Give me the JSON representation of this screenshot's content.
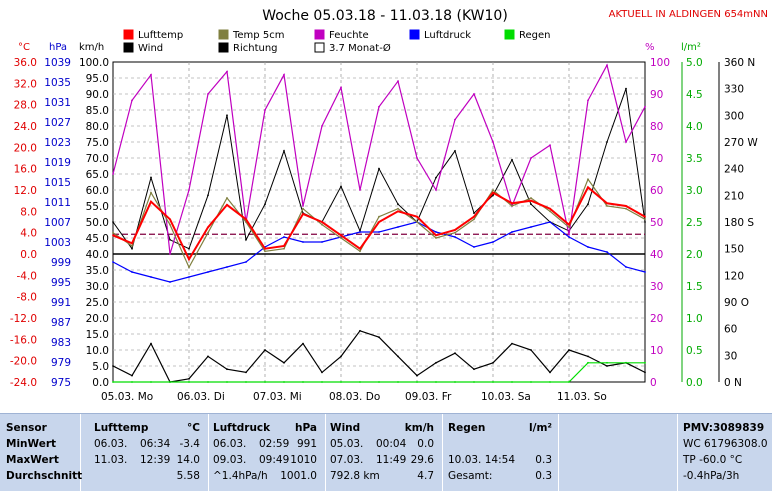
{
  "header": {
    "title": "Woche 05.03.18 - 11.03.18 (KW10)",
    "station": "AKTUELL IN ALDINGEN 654mNN"
  },
  "legend": [
    {
      "label": "Lufttemp",
      "color": "#ff0000"
    },
    {
      "label": "Temp 5cm",
      "color": "#808040"
    },
    {
      "label": "Feuchte",
      "color": "#c000c0"
    },
    {
      "label": "Luftdruck",
      "color": "#0000ff"
    },
    {
      "label": "Regen",
      "color": "#00dd00"
    },
    {
      "label": "Wind",
      "color": "#000000"
    },
    {
      "label": "Richtung",
      "color": "#000000"
    },
    {
      "label": "3.7 Monat-Ø",
      "color": "#800040"
    }
  ],
  "axes": {
    "temp_unit": "°C",
    "hpa_unit": "hPa",
    "kmh_unit": "km/h",
    "pct_unit": "%",
    "rain_unit": "l/m²",
    "temp_ticks": [
      "36.0",
      "32.0",
      "28.0",
      "24.0",
      "20.0",
      "16.0",
      "12.0",
      "8.0",
      "4.0",
      "0.0",
      "-4.0",
      "-8.0",
      "-12.0",
      "-16.0",
      "-20.0",
      "-24.0"
    ],
    "hpa_ticks": [
      "1039",
      "1035",
      "1031",
      "1027",
      "1023",
      "1019",
      "1015",
      "1011",
      "1007",
      "1003",
      "999",
      "995",
      "991",
      "987",
      "983",
      "979",
      "975"
    ],
    "kmh_ticks": [
      "100.0",
      "95.0",
      "90.0",
      "85.0",
      "80.0",
      "75.0",
      "70.0",
      "65.0",
      "60.0",
      "55.0",
      "50.0",
      "45.0",
      "40.0",
      "35.0",
      "30.0",
      "25.0",
      "20.0",
      "15.0",
      "10.0",
      "5.0",
      "0.0"
    ],
    "pct_ticks": [
      "100",
      "90",
      "80",
      "70",
      "60",
      "50",
      "40",
      "30",
      "20",
      "10",
      "0"
    ],
    "rain_ticks": [
      "5.0",
      "4.5",
      "4.0",
      "3.5",
      "3.0",
      "2.5",
      "2.0",
      "1.5",
      "1.0",
      "0.5",
      "0.0"
    ],
    "dir_ticks": [
      "360 N",
      "330",
      "300",
      "270 W",
      "240",
      "210",
      "180 S",
      "150",
      "120",
      "90 O",
      "60",
      "30",
      "0 N"
    ],
    "day_labels": [
      "05.03. Mo",
      "06.03. Di",
      "07.03. Mi",
      "08.03. Do",
      "09.03. Fr",
      "10.03. Sa",
      "11.03. So"
    ]
  },
  "chart_data": {
    "type": "line",
    "title": "Woche 05.03.18 - 11.03.18 (KW10)",
    "x": [
      0,
      0.25,
      0.5,
      0.75,
      1,
      1.25,
      1.5,
      1.75,
      2,
      2.25,
      2.5,
      2.75,
      3,
      3.25,
      3.5,
      3.75,
      4,
      4.25,
      4.5,
      4.75,
      5,
      5.25,
      5.5,
      5.75,
      6,
      6.25,
      6.5,
      6.75,
      7
    ],
    "ylim_temp": [
      -24,
      36
    ],
    "series": [
      {
        "name": "Lufttemp",
        "color": "#ff0000",
        "values": [
          3.5,
          2.0,
          9.8,
          6.5,
          -1.0,
          5.0,
          9.2,
          6.5,
          1.0,
          1.5,
          7.5,
          6.0,
          3.5,
          1.0,
          6.0,
          8.0,
          7.0,
          3.5,
          4.5,
          7.0,
          11.5,
          9.5,
          10.0,
          8.5,
          5.5,
          12.5,
          9.5,
          9.0,
          7.0
        ]
      },
      {
        "name": "Temp 5cm",
        "color": "#808040",
        "values": [
          4.0,
          1.5,
          11.5,
          5.5,
          -2.5,
          4.0,
          10.5,
          6.0,
          0.5,
          1.0,
          8.5,
          5.5,
          3.0,
          0.5,
          7.0,
          8.5,
          6.0,
          3.0,
          4.0,
          6.5,
          12.0,
          9.0,
          10.5,
          8.0,
          5.0,
          14.0,
          9.0,
          8.5,
          6.5
        ]
      },
      {
        "name": "Feuchte",
        "color": "#c000c0",
        "values": [
          65,
          88,
          96,
          40,
          60,
          90,
          97,
          50,
          85,
          96,
          55,
          80,
          92,
          60,
          86,
          94,
          70,
          60,
          82,
          90,
          75,
          55,
          70,
          74,
          46,
          88,
          99,
          75,
          86
        ]
      },
      {
        "name": "Luftdruck",
        "color": "#0000ff",
        "values": [
          999,
          997,
          996,
          995,
          996,
          997,
          998,
          999,
          1002,
          1004,
          1003,
          1003,
          1004,
          1005,
          1005,
          1006,
          1007,
          1005,
          1004,
          1002,
          1003,
          1005,
          1006,
          1007,
          1004,
          1002,
          1001,
          998,
          997
        ]
      },
      {
        "name": "Wind",
        "color": "#000000",
        "values": [
          5,
          2,
          12,
          0,
          1,
          8,
          4,
          3,
          10,
          6,
          12,
          3,
          8,
          16,
          14,
          8,
          2,
          6,
          9,
          4,
          6,
          12,
          10,
          3,
          10,
          8,
          5,
          6,
          3
        ]
      },
      {
        "name": "Richtung",
        "color": "#000000",
        "values": [
          180,
          150,
          230,
          160,
          150,
          210,
          300,
          160,
          200,
          260,
          190,
          180,
          220,
          170,
          240,
          200,
          180,
          230,
          260,
          190,
          210,
          250,
          200,
          180,
          170,
          200,
          270,
          330,
          180
        ]
      },
      {
        "name": "Regen",
        "color": "#00dd00",
        "values": [
          0,
          0,
          0,
          0,
          0,
          0,
          0,
          0,
          0,
          0,
          0,
          0,
          0,
          0,
          0,
          0,
          0,
          0,
          0,
          0,
          0,
          0,
          0,
          0,
          0,
          0.3,
          0.3,
          0.3,
          0.3
        ]
      }
    ],
    "reference_lines": [
      {
        "name": "3.7 Monat-Ø",
        "value": 3.7,
        "color": "#800040"
      },
      {
        "name": "0°C",
        "value": 0,
        "color": "#000000"
      }
    ]
  },
  "table": {
    "sensor": {
      "title": "Sensor",
      "rows": [
        "MinWert",
        "MaxWert",
        "Durchschnitt"
      ]
    },
    "lufttemp": {
      "title": "Lufttemp",
      "unit": "°C",
      "rows": [
        {
          "date": "06.03.",
          "time": "06:34",
          "value": "-3.4"
        },
        {
          "date": "11.03.",
          "time": "12:39",
          "value": "14.0"
        },
        {
          "date": "",
          "time": "",
          "value": "5.58"
        }
      ]
    },
    "luftdruck": {
      "title": "Luftdruck",
      "unit": "hPa",
      "rows": [
        {
          "date": "06.03.",
          "time": "02:59",
          "value": "991"
        },
        {
          "date": "09.03.",
          "time": "09:49",
          "value": "1010"
        },
        {
          "date": "^1.4hPa/h",
          "time": "",
          "value": "1001.0"
        }
      ]
    },
    "wind": {
      "title": "Wind",
      "unit": "km/h",
      "rows": [
        {
          "date": "05.03.",
          "time": "00:04",
          "value": "0.0"
        },
        {
          "date": "07.03.",
          "time": "11:49",
          "value": "29.6"
        },
        {
          "date": "792.8 km",
          "time": "",
          "value": "4.7"
        }
      ]
    },
    "regen": {
      "title": "Regen",
      "unit": "l/m²",
      "rows": [
        {
          "label": "",
          "value": ""
        },
        {
          "label": "10.03.  14:54",
          "value": "0.3"
        },
        {
          "label": "Gesamt:",
          "value": "0.3"
        }
      ]
    },
    "pmv": {
      "title": "PMV:3089839",
      "rows": [
        "WC 61796308.0",
        "TP -60.0 °C",
        "-0.4hPa/3h"
      ]
    }
  }
}
